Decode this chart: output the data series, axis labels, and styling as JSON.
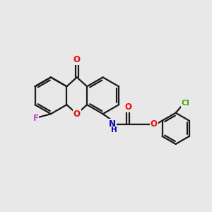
{
  "background_color": "#e8e8e8",
  "bond_color": "#1a1a1a",
  "atom_colors": {
    "O": "#ff0000",
    "N": "#0000cc",
    "F": "#cc44cc",
    "Cl": "#44aa00"
  },
  "bond_lw": 1.6,
  "font_size": 8.5,
  "fig_w": 3.0,
  "fig_h": 3.0,
  "dpi": 100
}
